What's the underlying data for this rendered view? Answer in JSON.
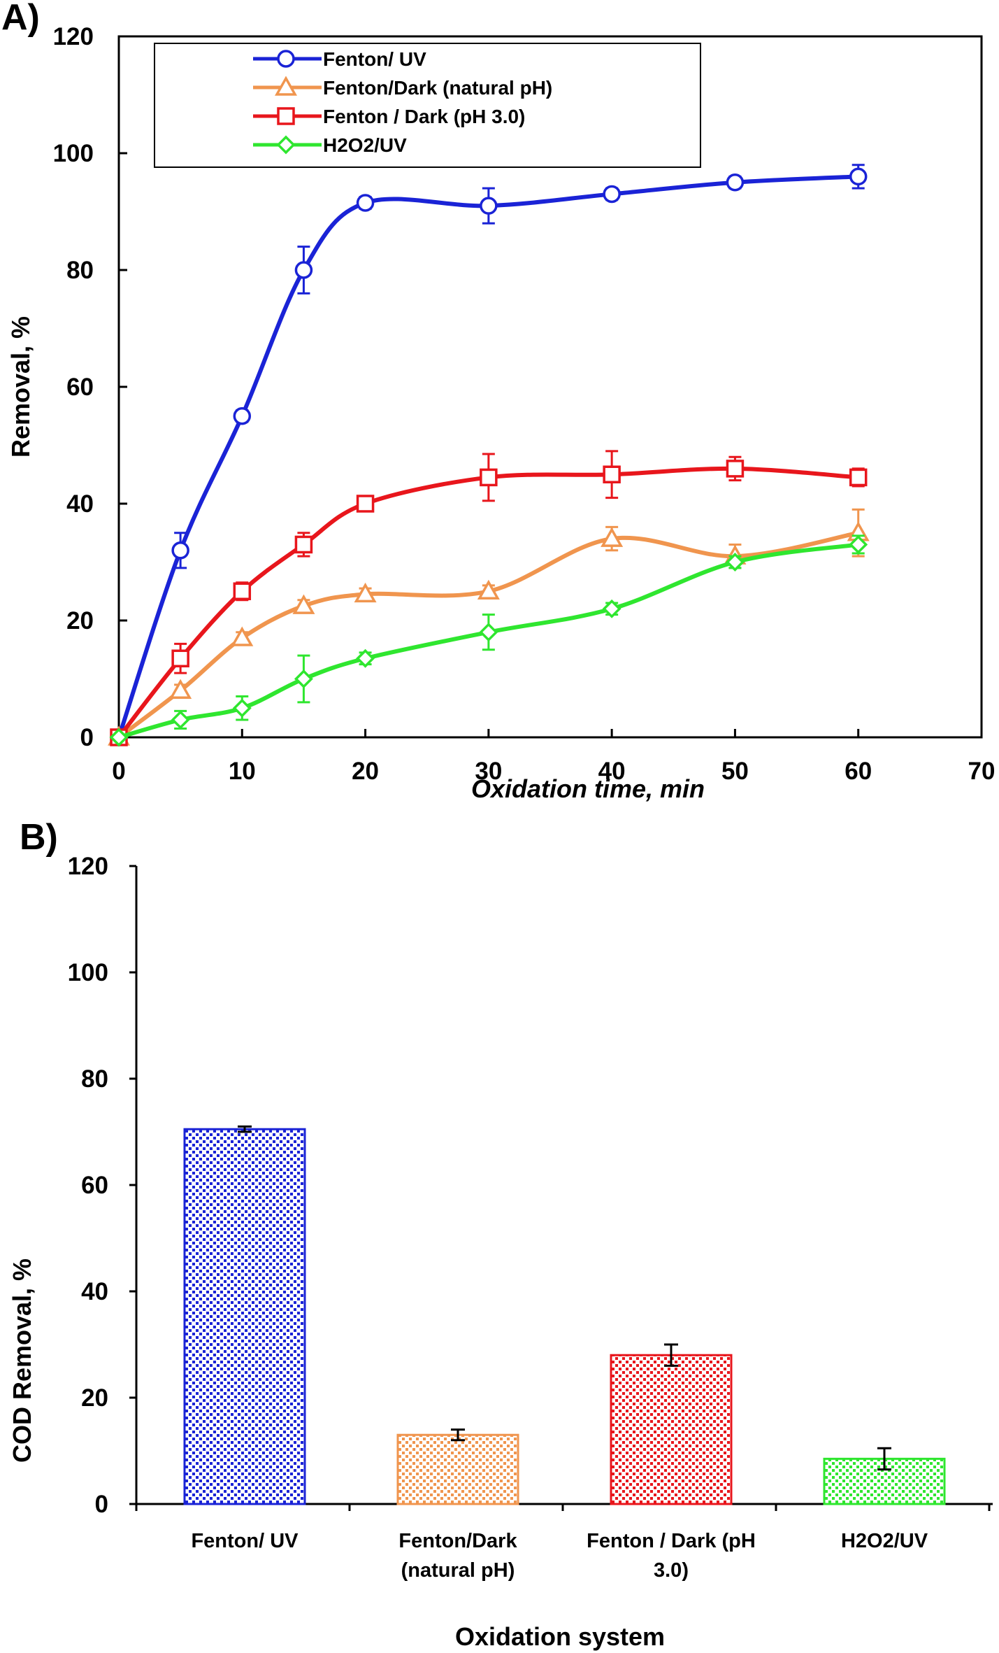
{
  "chart_data": [
    {
      "panel": "A)",
      "type": "line",
      "xlabel": "Oxidation time, min",
      "ylabel": "Removal, %",
      "xlim": [
        0,
        70
      ],
      "ylim": [
        0,
        120
      ],
      "xticks": [
        0,
        10,
        20,
        30,
        40,
        50,
        60,
        70
      ],
      "yticks": [
        0,
        20,
        40,
        60,
        80,
        100,
        120
      ],
      "grid": false,
      "legend": "top-left",
      "series": [
        {
          "name": "Fenton/ UV",
          "color": "#1a23d6",
          "marker": "circle",
          "x": [
            0,
            5,
            10,
            15,
            20,
            30,
            40,
            50,
            60
          ],
          "y": [
            0,
            32,
            55,
            80,
            91.5,
            91,
            93,
            95,
            96
          ],
          "err": [
            0,
            3,
            1,
            4,
            1,
            3,
            1,
            1,
            2
          ]
        },
        {
          "name": "Fenton/Dark (natural pH)",
          "color": "#f0954e",
          "marker": "triangle",
          "x": [
            0,
            5,
            10,
            15,
            20,
            30,
            40,
            50,
            60
          ],
          "y": [
            0,
            8,
            17,
            22.5,
            24.5,
            25,
            34,
            31,
            35
          ],
          "err": [
            0,
            1,
            1,
            1,
            1,
            1,
            2,
            2,
            4
          ]
        },
        {
          "name": "Fenton / Dark (pH 3.0)",
          "color": "#e8161c",
          "marker": "square",
          "x": [
            0,
            5,
            10,
            15,
            20,
            30,
            40,
            50,
            60
          ],
          "y": [
            0,
            13.5,
            25,
            33,
            40,
            44.5,
            45,
            46,
            44.5
          ],
          "err": [
            0,
            2.5,
            1.5,
            2,
            1,
            4,
            4,
            2,
            1.5
          ]
        },
        {
          "name": "H2O2/UV",
          "color": "#2fe62f",
          "marker": "diamond",
          "x": [
            0,
            5,
            10,
            15,
            20,
            30,
            40,
            50,
            60
          ],
          "y": [
            0,
            3,
            5,
            10,
            13.5,
            18,
            22,
            30,
            33
          ],
          "err": [
            0,
            1.5,
            2,
            4,
            1,
            3,
            1,
            1,
            1.5
          ]
        }
      ]
    },
    {
      "panel": "B)",
      "type": "bar",
      "xlabel": "Oxidation system",
      "ylabel": "COD Removal,  %",
      "ylim": [
        0,
        120
      ],
      "yticks": [
        0,
        20,
        40,
        60,
        80,
        100,
        120
      ],
      "grid": false,
      "categories": [
        [
          "Fenton/ UV"
        ],
        [
          "Fenton/Dark",
          "(natural pH)"
        ],
        [
          "Fenton / Dark (pH",
          "3.0)"
        ],
        [
          "H2O2/UV"
        ]
      ],
      "values": [
        70.5,
        13,
        28,
        8.5
      ],
      "err": [
        0.5,
        1,
        2,
        2
      ],
      "colors": [
        "#1a23d6",
        "#f0954e",
        "#e8161c",
        "#2fe62f"
      ]
    }
  ]
}
